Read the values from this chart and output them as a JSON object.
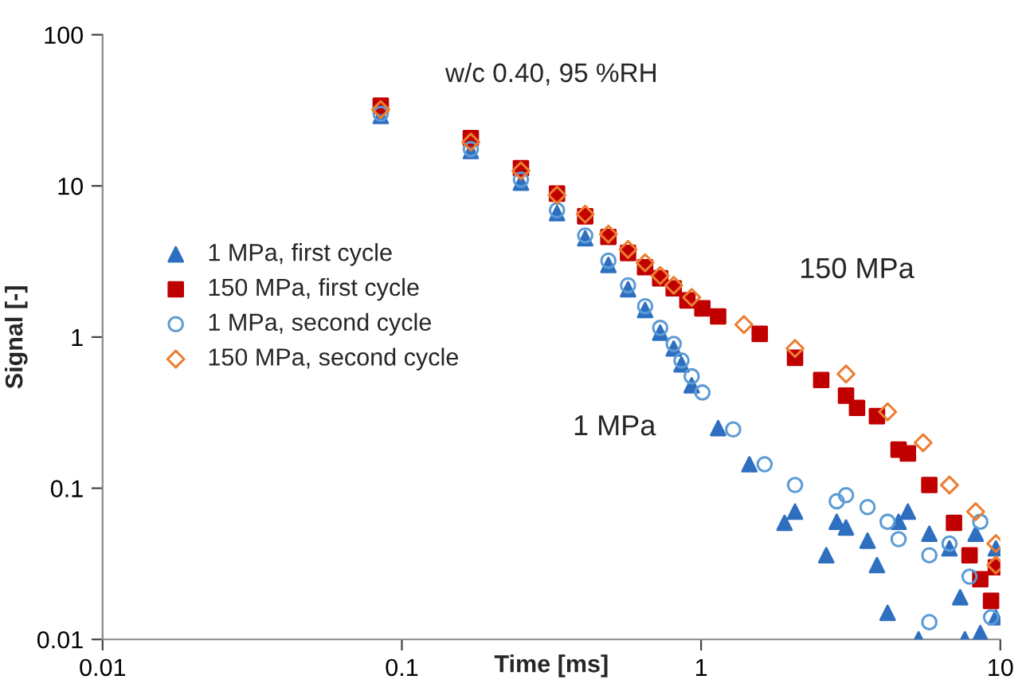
{
  "chart_data": {
    "type": "scatter",
    "title": "w/c 0.40, 95 %RH",
    "xlabel": "Time [ms]",
    "ylabel": "Signal [-]",
    "log": "xy",
    "xlim": [
      0.01,
      10
    ],
    "ylim": [
      0.01,
      100
    ],
    "xticks": [
      0.01,
      0.1,
      1,
      10
    ],
    "yticks": [
      0.01,
      0.1,
      1,
      10,
      100
    ],
    "grid": false,
    "legend": "left",
    "annotations": [
      "150 MPa",
      "1 MPa"
    ],
    "series": [
      {
        "name": "1 MPa, first cycle",
        "color": "#2e6fc0",
        "marker": "triangle",
        "x": [
          0.085,
          0.17,
          0.25,
          0.33,
          0.41,
          0.49,
          0.57,
          0.65,
          0.73,
          0.81,
          0.86,
          0.93,
          1.14,
          1.45,
          1.9,
          2.06,
          2.62,
          2.84,
          3.05,
          3.6,
          3.87,
          4.2,
          4.57,
          4.91,
          5.33,
          5.79,
          6.76,
          7.34,
          7.61,
          8.27,
          8.57,
          9.66,
          9.66
        ],
        "values": [
          29,
          17,
          10.5,
          6.6,
          4.5,
          3.0,
          2.07,
          1.51,
          1.07,
          0.84,
          0.66,
          0.48,
          0.25,
          0.144,
          0.059,
          0.07,
          0.036,
          0.06,
          0.055,
          0.045,
          0.031,
          0.015,
          0.06,
          0.07,
          0.01,
          0.05,
          0.04,
          0.019,
          0.01,
          0.05,
          0.011,
          0.014,
          0.04
        ]
      },
      {
        "name": "150 MPa, first cycle",
        "color": "#c00000",
        "marker": "square",
        "x": [
          0.085,
          0.17,
          0.25,
          0.33,
          0.41,
          0.49,
          0.57,
          0.65,
          0.73,
          0.81,
          0.9,
          1.01,
          1.14,
          1.57,
          2.06,
          2.52,
          3.05,
          3.32,
          3.87,
          4.57,
          4.91,
          5.79,
          7.0,
          7.89,
          8.57,
          9.31,
          9.66
        ],
        "values": [
          34,
          20.7,
          13.1,
          8.9,
          6.3,
          4.6,
          3.6,
          2.9,
          2.45,
          2.1,
          1.75,
          1.55,
          1.37,
          1.05,
          0.73,
          0.52,
          0.41,
          0.34,
          0.3,
          0.18,
          0.17,
          0.105,
          0.059,
          0.036,
          0.025,
          0.018,
          0.03
        ]
      },
      {
        "name": "1 MPa, second cycle",
        "color": "#5b9bd5",
        "marker": "circle",
        "x": [
          0.085,
          0.17,
          0.25,
          0.33,
          0.41,
          0.49,
          0.57,
          0.65,
          0.73,
          0.81,
          0.86,
          0.93,
          1.01,
          1.28,
          1.63,
          2.06,
          2.84,
          3.05,
          3.6,
          4.2,
          4.57,
          5.79,
          5.79,
          6.76,
          7.89,
          8.57,
          9.31
        ],
        "values": [
          30,
          17.5,
          11,
          6.9,
          4.7,
          3.2,
          2.2,
          1.6,
          1.15,
          0.9,
          0.7,
          0.55,
          0.43,
          0.245,
          0.144,
          0.105,
          0.082,
          0.09,
          0.075,
          0.06,
          0.046,
          0.036,
          0.013,
          0.043,
          0.026,
          0.06,
          0.014
        ]
      },
      {
        "name": "150 MPa, second cycle",
        "color": "#ed7d31",
        "marker": "diamond",
        "x": [
          0.085,
          0.17,
          0.25,
          0.33,
          0.41,
          0.49,
          0.57,
          0.65,
          0.73,
          0.81,
          0.93,
          1.39,
          2.06,
          3.05,
          4.2,
          5.52,
          6.76,
          8.27,
          9.66,
          9.66
        ],
        "values": [
          32,
          19.5,
          12.6,
          8.7,
          6.5,
          4.8,
          3.8,
          3.1,
          2.55,
          2.2,
          1.83,
          1.21,
          0.84,
          0.57,
          0.32,
          0.2,
          0.105,
          0.07,
          0.043,
          0.031
        ]
      }
    ]
  }
}
